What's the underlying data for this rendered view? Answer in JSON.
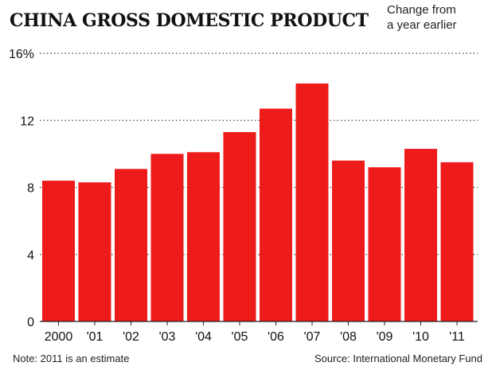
{
  "header": {
    "title": "CHINA GROSS DOMESTIC PRODUCT",
    "subtitle_line1": "Change from",
    "subtitle_line2": "a year earlier"
  },
  "footer": {
    "note": "Note: 2011 is an estimate",
    "source": "Source: International Monetary Fund"
  },
  "colors": {
    "bar": "#ee1b1b",
    "grid": "#444444",
    "axis": "#222222",
    "text": "#111111"
  },
  "chart_data": {
    "type": "bar",
    "title": "CHINA GROSS DOMESTIC PRODUCT",
    "subtitle": "Change from a year earlier",
    "xlabel": "",
    "ylabel": "",
    "categories": [
      "2000",
      "'01",
      "'02",
      "'03",
      "'04",
      "'05",
      "'06",
      "'07",
      "'08",
      "'09",
      "'10",
      "'11"
    ],
    "values": [
      8.4,
      8.3,
      9.1,
      10.0,
      10.1,
      11.3,
      12.7,
      14.2,
      9.6,
      9.2,
      10.3,
      9.5
    ],
    "yticks": [
      0,
      4,
      8,
      12,
      16
    ],
    "ytick_labels": [
      "0",
      "4",
      "8",
      "12",
      "16%"
    ],
    "ylim": [
      0,
      16
    ],
    "grid": true,
    "legend": "none"
  }
}
